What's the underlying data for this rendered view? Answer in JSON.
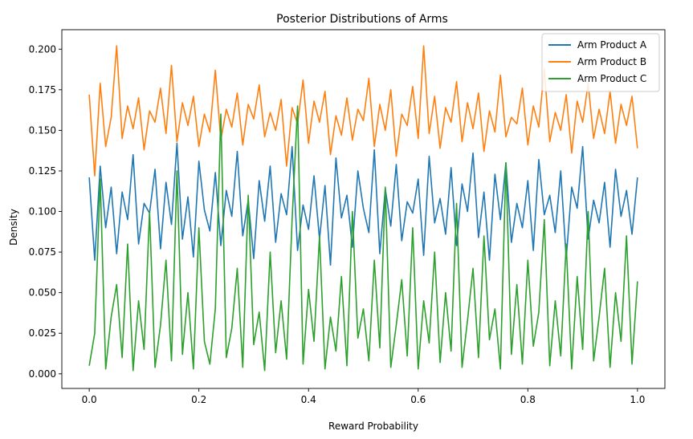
{
  "chart_data": {
    "type": "line",
    "title": "Posterior Distributions of Arms",
    "xlabel": "Reward Probability",
    "ylabel": "Density",
    "xlim": [
      -0.05,
      1.05
    ],
    "ylim": [
      -0.009,
      0.212
    ],
    "xticks": [
      0.0,
      0.2,
      0.4,
      0.6,
      0.8,
      1.0
    ],
    "xtick_labels": [
      "0.0",
      "0.2",
      "0.4",
      "0.6",
      "0.8",
      "1.0"
    ],
    "yticks": [
      0.0,
      0.025,
      0.05,
      0.075,
      0.1,
      0.125,
      0.15,
      0.175,
      0.2
    ],
    "ytick_labels": [
      "0.000",
      "0.025",
      "0.050",
      "0.075",
      "0.100",
      "0.125",
      "0.150",
      "0.175",
      "0.200"
    ],
    "grid": false,
    "legend_position": "top-right",
    "x_range": [
      0.0,
      1.0
    ],
    "series": [
      {
        "name": "Arm Product A",
        "color": "#1f77b4",
        "typical_range": [
          0.07,
          0.14
        ],
        "values": [
          0.121,
          0.07,
          0.128,
          0.09,
          0.115,
          0.074,
          0.112,
          0.095,
          0.135,
          0.08,
          0.105,
          0.099,
          0.126,
          0.077,
          0.118,
          0.092,
          0.142,
          0.083,
          0.109,
          0.072,
          0.131,
          0.101,
          0.088,
          0.124,
          0.079,
          0.113,
          0.097,
          0.137,
          0.085,
          0.107,
          0.071,
          0.119,
          0.094,
          0.128,
          0.081,
          0.111,
          0.098,
          0.14,
          0.076,
          0.104,
          0.089,
          0.122,
          0.083,
          0.116,
          0.067,
          0.133,
          0.096,
          0.11,
          0.078,
          0.125,
          0.102,
          0.087,
          0.138,
          0.074,
          0.114,
          0.091,
          0.129,
          0.082,
          0.106,
          0.099,
          0.12,
          0.073,
          0.134,
          0.093,
          0.108,
          0.086,
          0.127,
          0.079,
          0.117,
          0.1,
          0.136,
          0.084,
          0.112,
          0.07,
          0.123,
          0.095,
          0.13,
          0.081,
          0.105,
          0.09,
          0.119,
          0.076,
          0.132,
          0.098,
          0.11,
          0.087,
          0.125,
          0.071,
          0.115,
          0.102,
          0.14,
          0.083,
          0.107,
          0.093,
          0.118,
          0.078,
          0.126,
          0.097,
          0.113,
          0.086,
          0.121
        ]
      },
      {
        "name": "Arm Product B",
        "color": "#ff7f0e",
        "typical_range": [
          0.13,
          0.18
        ],
        "values": [
          0.172,
          0.122,
          0.179,
          0.14,
          0.158,
          0.202,
          0.145,
          0.165,
          0.151,
          0.17,
          0.138,
          0.162,
          0.155,
          0.176,
          0.148,
          0.19,
          0.143,
          0.167,
          0.153,
          0.171,
          0.14,
          0.16,
          0.149,
          0.187,
          0.144,
          0.163,
          0.152,
          0.173,
          0.141,
          0.166,
          0.157,
          0.178,
          0.146,
          0.161,
          0.15,
          0.169,
          0.128,
          0.164,
          0.154,
          0.181,
          0.142,
          0.168,
          0.155,
          0.174,
          0.135,
          0.159,
          0.147,
          0.17,
          0.144,
          0.163,
          0.156,
          0.182,
          0.14,
          0.166,
          0.15,
          0.175,
          0.134,
          0.16,
          0.153,
          0.177,
          0.145,
          0.202,
          0.148,
          0.171,
          0.139,
          0.164,
          0.155,
          0.18,
          0.143,
          0.167,
          0.151,
          0.173,
          0.137,
          0.162,
          0.149,
          0.184,
          0.146,
          0.158,
          0.154,
          0.176,
          0.141,
          0.165,
          0.152,
          0.188,
          0.143,
          0.161,
          0.15,
          0.172,
          0.136,
          0.168,
          0.155,
          0.179,
          0.145,
          0.163,
          0.148,
          0.174,
          0.142,
          0.166,
          0.153,
          0.171,
          0.139
        ]
      },
      {
        "name": "Arm Product C",
        "color": "#2ca02c",
        "typical_range": [
          0.0,
          0.06
        ],
        "values": [
          0.005,
          0.025,
          0.12,
          0.003,
          0.035,
          0.055,
          0.01,
          0.08,
          0.002,
          0.045,
          0.015,
          0.1,
          0.004,
          0.03,
          0.07,
          0.008,
          0.125,
          0.012,
          0.05,
          0.003,
          0.09,
          0.02,
          0.006,
          0.04,
          0.16,
          0.01,
          0.028,
          0.065,
          0.004,
          0.11,
          0.018,
          0.038,
          0.002,
          0.075,
          0.013,
          0.045,
          0.009,
          0.095,
          0.165,
          0.006,
          0.052,
          0.02,
          0.085,
          0.003,
          0.035,
          0.014,
          0.06,
          0.005,
          0.1,
          0.022,
          0.04,
          0.008,
          0.07,
          0.016,
          0.115,
          0.004,
          0.03,
          0.058,
          0.011,
          0.09,
          0.003,
          0.045,
          0.019,
          0.075,
          0.007,
          0.05,
          0.014,
          0.105,
          0.004,
          0.033,
          0.065,
          0.01,
          0.085,
          0.021,
          0.04,
          0.003,
          0.13,
          0.012,
          0.055,
          0.006,
          0.07,
          0.017,
          0.038,
          0.095,
          0.005,
          0.045,
          0.011,
          0.08,
          0.003,
          0.06,
          0.015,
          0.1,
          0.008,
          0.035,
          0.065,
          0.004,
          0.05,
          0.02,
          0.085,
          0.006,
          0.057
        ]
      }
    ]
  }
}
